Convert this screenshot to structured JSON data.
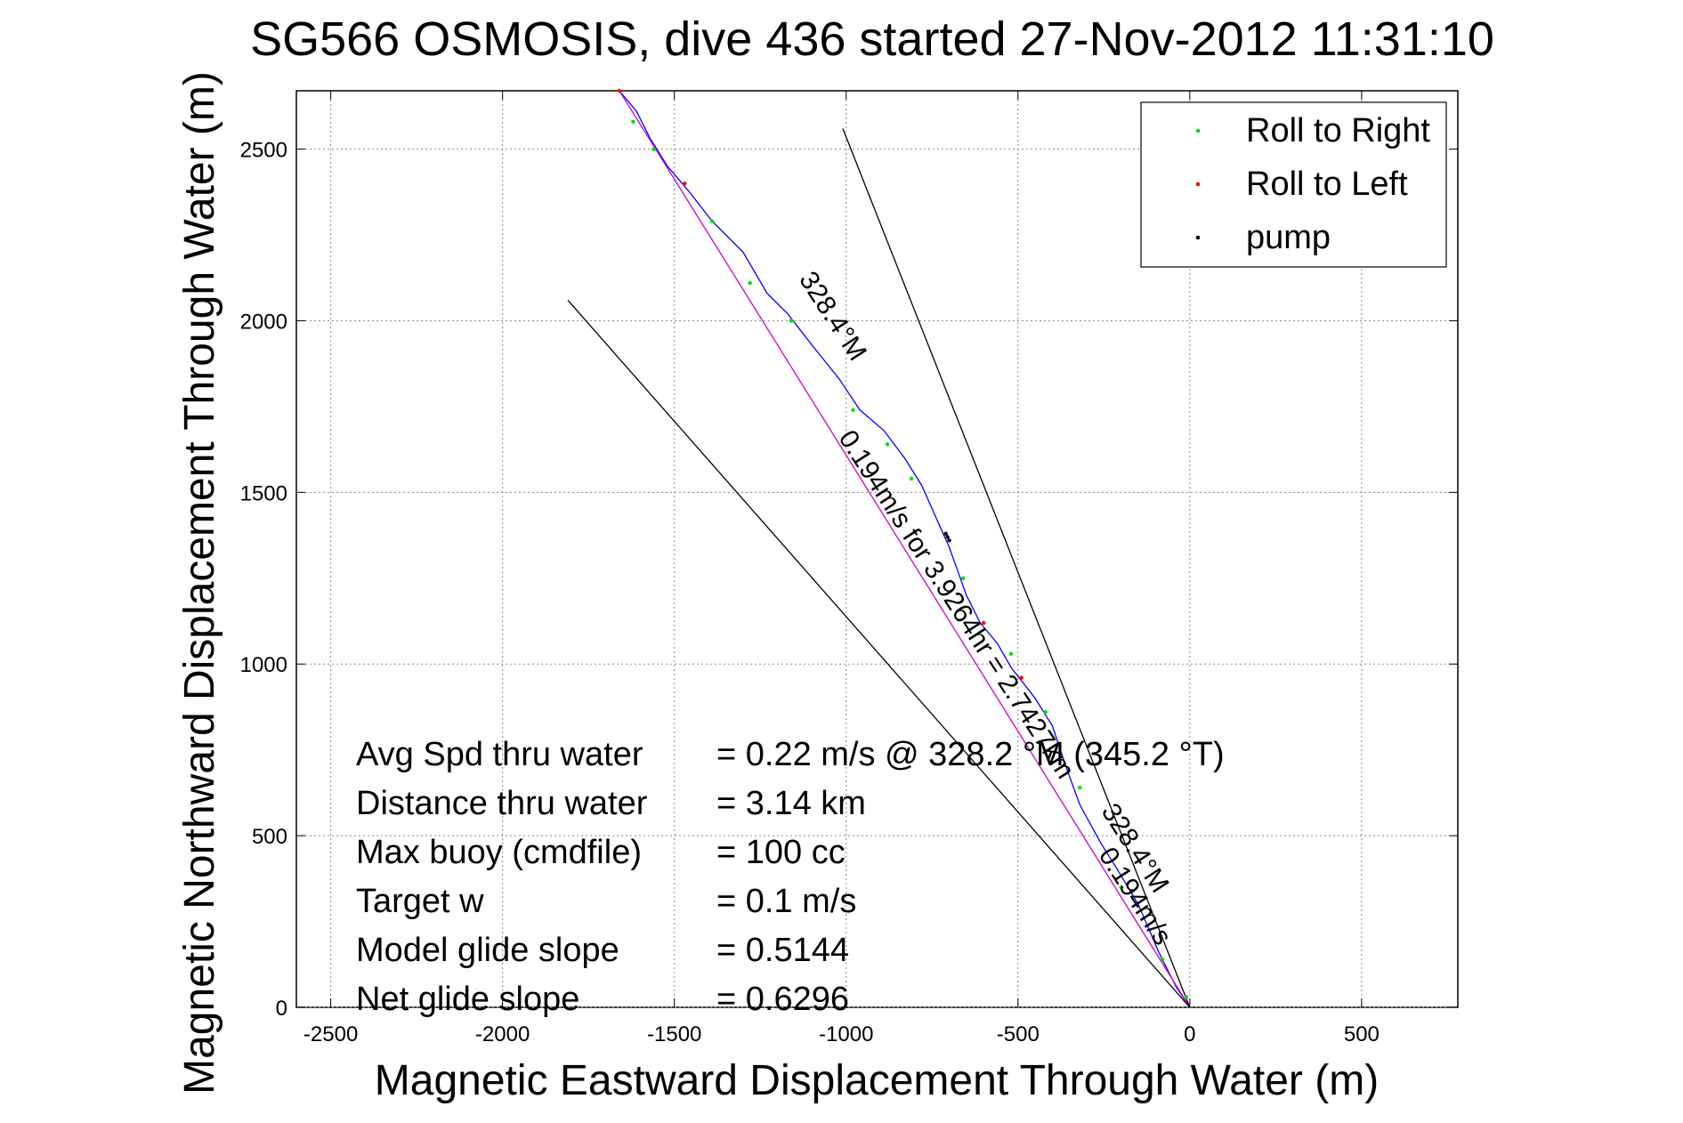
{
  "chart_data": {
    "type": "line",
    "title": "SG566 OSMOSIS, dive 436 started 27-Nov-2012 11:31:10",
    "xlabel": "Magnetic Eastward Displacement Through Water (m)",
    "ylabel": "Magnetic Northward Displacement Through Water (m)",
    "xlim": [
      -2600,
      780
    ],
    "ylim": [
      0,
      2670
    ],
    "xticks": [
      -2500,
      -2000,
      -1500,
      -1000,
      -500,
      0,
      500
    ],
    "yticks": [
      0,
      500,
      1000,
      1500,
      2000,
      2500
    ],
    "xtick_labels": [
      "-2500",
      "-2000",
      "-1500",
      "-1000",
      "-500",
      "0",
      "500"
    ],
    "ytick_labels": [
      "0",
      "500",
      "1000",
      "1500",
      "2000",
      "2500"
    ],
    "grid": true,
    "legend_position": "top-right",
    "legend": [
      {
        "label": "Roll to Right",
        "color": "#00dd00"
      },
      {
        "label": "Roll to Left",
        "color": "#ff0000"
      },
      {
        "label": "pump",
        "color": "#000000"
      }
    ],
    "series": [
      {
        "color": "#0000ff",
        "points": [
          [
            0,
            0
          ],
          [
            -40,
            60
          ],
          [
            -90,
            160
          ],
          [
            -150,
            300
          ],
          [
            -210,
            400
          ],
          [
            -260,
            480
          ],
          [
            -320,
            590
          ],
          [
            -360,
            700
          ],
          [
            -400,
            820
          ],
          [
            -450,
            900
          ],
          [
            -520,
            990
          ],
          [
            -560,
            1060
          ],
          [
            -610,
            1120
          ],
          [
            -650,
            1200
          ],
          [
            -700,
            1340
          ],
          [
            -740,
            1430
          ],
          [
            -780,
            1520
          ],
          [
            -830,
            1600
          ],
          [
            -890,
            1680
          ],
          [
            -960,
            1740
          ],
          [
            -1020,
            1830
          ],
          [
            -1100,
            1930
          ],
          [
            -1170,
            2020
          ],
          [
            -1230,
            2080
          ],
          [
            -1300,
            2200
          ],
          [
            -1390,
            2290
          ],
          [
            -1460,
            2380
          ],
          [
            -1520,
            2450
          ],
          [
            -1570,
            2530
          ],
          [
            -1610,
            2610
          ],
          [
            -1660,
            2670
          ]
        ]
      },
      {
        "color": "#cc00cc",
        "points": [
          [
            0,
            0
          ],
          [
            -1660,
            2670
          ]
        ]
      },
      {
        "color": "#000000",
        "points": [
          [
            0,
            0
          ],
          [
            -1810,
            2060
          ]
        ]
      },
      {
        "color": "#000000",
        "points": [
          [
            0,
            0
          ],
          [
            -1010,
            2560
          ]
        ]
      }
    ],
    "roll_right_points": [
      [
        -10,
        30
      ],
      [
        -80,
        140
      ],
      [
        -200,
        350
      ],
      [
        -320,
        640
      ],
      [
        -420,
        860
      ],
      [
        -520,
        1030
      ],
      [
        -660,
        1250
      ],
      [
        -810,
        1540
      ],
      [
        -880,
        1640
      ],
      [
        -980,
        1740
      ],
      [
        -1160,
        2000
      ],
      [
        -1280,
        2110
      ],
      [
        -1390,
        2290
      ],
      [
        -1560,
        2500
      ],
      [
        -1620,
        2580
      ]
    ],
    "roll_left_points": [
      [
        -490,
        960
      ],
      [
        -600,
        1120
      ],
      [
        -1470,
        2400
      ],
      [
        -1660,
        2670
      ]
    ],
    "pump_points": [
      [
        -700,
        1360
      ],
      [
        -705,
        1370
      ],
      [
        -710,
        1380
      ]
    ],
    "annotations": [
      {
        "text": "328.4°M",
        "x": -1060,
        "y": 2000,
        "rotate": 57
      },
      {
        "text": "0.194m/s for 3.9264hr = 2.7427km",
        "x": -700,
        "y": 1160,
        "rotate": 57
      },
      {
        "text": "0.194m/s",
        "x": -180,
        "y": 310,
        "rotate": 57
      },
      {
        "text": "328.4°M",
        "x": -180,
        "y": 450,
        "rotate": 57
      }
    ],
    "info_text": [
      {
        "label": "Avg Spd thru water",
        "value": "=  0.22 m/s @ 328.2 °M (345.2 °T)"
      },
      {
        "label": "Distance thru water",
        "value": "=  3.14 km"
      },
      {
        "label": "Max buoy (cmdfile)",
        "value": "= 100 cc"
      },
      {
        "label": "Target w",
        "value": "= 0.1 m/s"
      },
      {
        "label": "Model glide slope",
        "value": "= 0.5144"
      },
      {
        "label": "Net glide slope",
        "value": "= 0.6296"
      }
    ]
  }
}
